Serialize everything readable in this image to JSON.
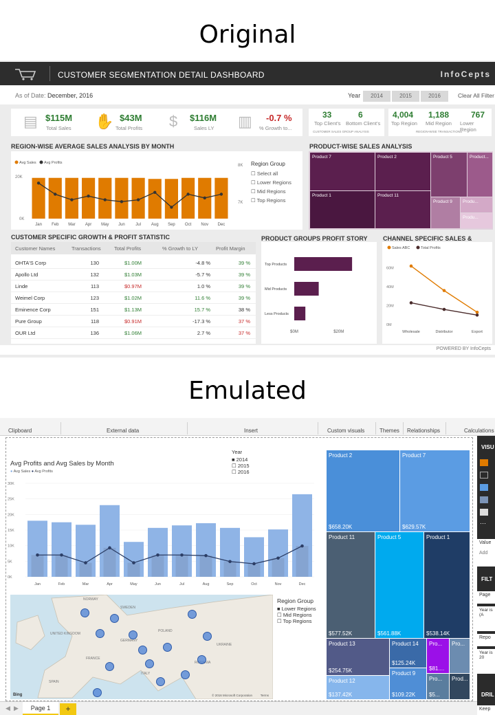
{
  "headings": {
    "original": "Original",
    "emulated": "Emulated"
  },
  "original": {
    "title": "CUSTOMER SEGMENTATION DETAIL DASHBOARD",
    "brand": "InfoCepts",
    "as_of_label": "As of Date:",
    "as_of_value": "December, 2016",
    "year_label": "Year",
    "years": [
      "2014",
      "2015",
      "2016"
    ],
    "clear_filter": "Clear All Filter",
    "kpis": [
      {
        "value": "$115M",
        "label": "Total Sales",
        "icon": "money-icon"
      },
      {
        "value": "$43M",
        "label": "Total Profits",
        "icon": "hand-money-icon"
      },
      {
        "value": "$116M",
        "label": "Sales LY",
        "icon": "money-bag-icon"
      },
      {
        "value": "-0.7 %",
        "label": "% Growth to...",
        "icon": "growth-chart-icon"
      }
    ],
    "client_box": {
      "top_value": "33",
      "top_label": "Top Client's",
      "bottom_value": "6",
      "bottom_label": "Bottom Client's",
      "caption": "CUSTOMER SALES GROUP ANALYSIS"
    },
    "region_box": {
      "items": [
        {
          "value": "4,004",
          "label": "Top Region"
        },
        {
          "value": "1,188",
          "label": "Mid Region"
        },
        {
          "value": "767",
          "label": "Lower Region"
        }
      ],
      "caption": "REGION-WISE TRANSACTIONS"
    },
    "region_chart_title": "REGION-WISE AVERAGE SALES ANALYSIS BY MONTH",
    "product_title": "PRODUCT-WISE SALES ANALYSIS",
    "region_group": {
      "title": "Region Group",
      "options": [
        "Select all",
        "Lower Regions",
        "Mid Regions",
        "Top Regions"
      ]
    },
    "right_axis": [
      "8K",
      "7K"
    ],
    "treemap": [
      "Product 7",
      "Product 2",
      "Product 5",
      "Product...",
      "Product 1",
      "Product 11",
      "Product 9",
      "Produ...",
      "Produ..."
    ],
    "table_title": "CUSTOMER SPECIFIC GROWTH & PROFIT STATISTIC",
    "table_headers": [
      "Customer Names",
      "Transactions",
      "Total Profits",
      "% Growth to LY",
      "Profit Margin"
    ],
    "table_rows": [
      [
        "OHTA'S Corp",
        "130",
        "$1.00M",
        "-4.8 %",
        "39 %"
      ],
      [
        "Apollo Ltd",
        "132",
        "$1.03M",
        "-5.7 %",
        "39 %"
      ],
      [
        "Linde",
        "113",
        "$0.97M",
        "1.0 %",
        "39 %"
      ],
      [
        "Weimel Corp",
        "123",
        "$1.02M",
        "11.6 %",
        "39 %"
      ],
      [
        "Eminence Corp",
        "151",
        "$1.13M",
        "15.7 %",
        "38 %"
      ],
      [
        "Pure Group",
        "118",
        "$0.91M",
        "-17.3 %",
        "37 %"
      ],
      [
        "OUR Ltd",
        "136",
        "$1.06M",
        "2.7 %",
        "37 %"
      ]
    ],
    "groups_title": "PRODUCT GROUPS PROFIT STORY",
    "channel_title": "CHANNEL SPECIFIC SALES & PROFIT",
    "powered": "POWERED BY InfoCepts",
    "colors": {
      "accent": "#e07b00",
      "line": "#333333",
      "purple": "#5b1f4e",
      "green": "#2e7d32",
      "red": "#c62828"
    }
  },
  "emulated": {
    "ribbon": [
      "Clipboard",
      "External data",
      "Insert",
      "Custom visuals",
      "Themes",
      "Relationships",
      "Calculations"
    ],
    "chart_title": "Avg Profits and Avg Sales by Month",
    "legend": [
      "Avg Sales",
      "Avg Profits"
    ],
    "year_title": "Year",
    "years": [
      "2014",
      "2015",
      "2016"
    ],
    "region_title": "Region Group",
    "regions": [
      "Lower Regions",
      "Mid Regions",
      "Top Regions"
    ],
    "map_labels": [
      "Bing",
      "© 2016 Microsoft Corporation",
      "Terms"
    ],
    "countries": [
      "NORWAY",
      "SWEDEN",
      "UNITED KINGDOM",
      "POLAND",
      "GERMANY",
      "FRANCE",
      "ITALY",
      "SPAIN",
      "UKRAINE",
      "ROMANIA"
    ],
    "treemap": [
      {
        "name": "Product 2",
        "value": "$658.20K"
      },
      {
        "name": "Product 7",
        "value": "$629.57K"
      },
      {
        "name": "Product 11",
        "value": "$577.52K"
      },
      {
        "name": "Product 5",
        "value": "$561.88K"
      },
      {
        "name": "Product 1",
        "value": "$538.14K"
      },
      {
        "name": "Product 13",
        "value": "$254.75K"
      },
      {
        "name": "Product 14",
        "value": "$125.24K"
      },
      {
        "name": "Product 12",
        "value": "$137.42K"
      },
      {
        "name": "Product 9",
        "value": "$109.22K"
      },
      {
        "name": "Pro...",
        "value": "$81...."
      },
      {
        "name": "Pro...",
        "value": ""
      },
      {
        "name": "Prod...",
        "value": ""
      },
      {
        "name": "Pro...",
        "value": "$5..."
      }
    ],
    "right_panel": [
      "VISU",
      "Value",
      "Add",
      "FILT",
      "Page",
      "Year is (A",
      "Repo",
      "Year is 20",
      "DRIL",
      "Keep"
    ],
    "page_tab": "Page 1",
    "add_tab": "+"
  },
  "chart_data": [
    {
      "type": "bar",
      "title": "",
      "categories": [
        "Jan",
        "Feb",
        "Mar",
        "Apr",
        "May",
        "Jun",
        "Jul",
        "Aug",
        "Sep",
        "Oct",
        "Nov",
        "Dec"
      ],
      "series": [
        {
          "name": "Avg Sales",
          "values": [
            19500,
            19500,
            19500,
            19500,
            19500,
            19500,
            19500,
            19000,
            19000,
            19500,
            19500,
            19500
          ]
        },
        {
          "name": "Avg Profits",
          "values": [
            7.55,
            7.25,
            7.1,
            7.2,
            7.1,
            7.05,
            7.1,
            7.3,
            6.9,
            7.25,
            7.15,
            7.25
          ]
        }
      ],
      "ylim": [
        0,
        25000
      ],
      "yticks": [
        "0K",
        "20K"
      ]
    },
    {
      "type": "bar",
      "title": "",
      "categories": [
        "Top Products",
        "Mid Products",
        "Less Products"
      ],
      "values": [
        26,
        11,
        5
      ],
      "xticks": [
        "$0M",
        "$20M"
      ],
      "xlim": [
        0,
        34
      ]
    },
    {
      "type": "line",
      "title": "",
      "categories": [
        "Wholesale",
        "Distributor",
        "Export"
      ],
      "series": [
        {
          "name": "Sales ABC",
          "values": [
            62,
            36,
            13
          ]
        },
        {
          "name": "Total Profits",
          "values": [
            23,
            16,
            10
          ]
        }
      ],
      "yticks": [
        "0M",
        "20M",
        "40M",
        "60M"
      ],
      "ylim": [
        0,
        70
      ]
    },
    {
      "type": "bar",
      "title": "Avg Profits and Avg Sales by Month",
      "categories": [
        "Jan",
        "Feb",
        "Mar",
        "Apr",
        "May",
        "Jun",
        "Jul",
        "Aug",
        "Sep",
        "Oct",
        "Nov",
        "Dec"
      ],
      "series": [
        {
          "name": "Avg Sales",
          "values": [
            18000,
            17500,
            16700,
            23000,
            11200,
            15700,
            16500,
            17200,
            15700,
            12700,
            15200,
            26500
          ]
        },
        {
          "name": "Avg Profits",
          "values": [
            7000,
            7000,
            4500,
            9300,
            4500,
            7000,
            7000,
            6800,
            4900,
            4200,
            6000,
            9900
          ]
        }
      ],
      "ylim": [
        0,
        30000
      ],
      "yticks": [
        "0K",
        "5K",
        "10K",
        "15K",
        "20K",
        "25K",
        "30K"
      ]
    }
  ]
}
